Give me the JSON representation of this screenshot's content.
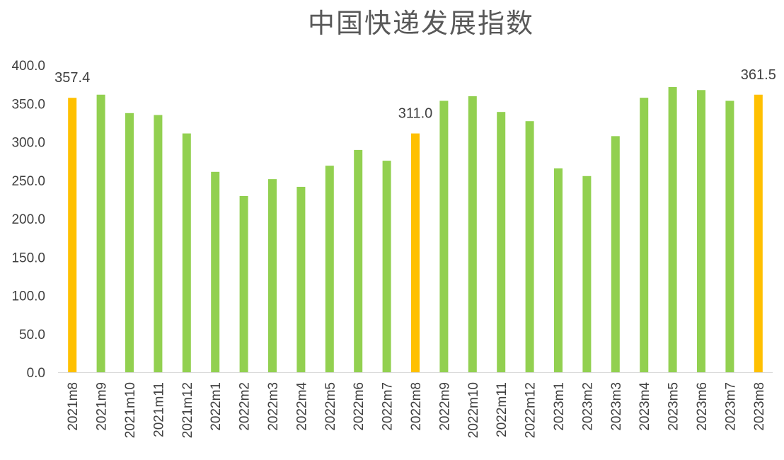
{
  "chart_data": {
    "type": "bar",
    "title": "中国快递发展指数",
    "categories": [
      "2021m8",
      "2021m9",
      "2021m10",
      "2021m11",
      "2021m12",
      "2022m1",
      "2022m2",
      "2022m3",
      "2022m4",
      "2022m5",
      "2022m6",
      "2022m7",
      "2022m8",
      "2022m9",
      "2022m10",
      "2022m11",
      "2022m12",
      "2023m1",
      "2023m2",
      "2023m3",
      "2023m4",
      "2023m5",
      "2023m6",
      "2023m7",
      "2023m8"
    ],
    "values": [
      357.4,
      361.5,
      337.5,
      335.0,
      311.0,
      261.0,
      229.5,
      251.5,
      241.5,
      269.0,
      289.5,
      275.5,
      311.0,
      353.5,
      359.5,
      339.0,
      327.0,
      265.5,
      255.5,
      307.5,
      357.5,
      371.5,
      367.5,
      353.5,
      361.5
    ],
    "ylim": [
      0,
      400
    ],
    "yticks": [
      "0.0",
      "50.0",
      "100.0",
      "150.0",
      "200.0",
      "250.0",
      "300.0",
      "350.0",
      "400.0"
    ],
    "grid": false,
    "colors": {
      "normal": "#92D050",
      "highlight": "#FFC000"
    },
    "highlighted_categories": [
      "2021m8",
      "2022m8",
      "2023m8"
    ],
    "data_labels": [
      {
        "category": "2021m8",
        "text": "357.4"
      },
      {
        "category": "2022m8",
        "text": "311.0"
      },
      {
        "category": "2023m8",
        "text": "361.5"
      }
    ]
  }
}
